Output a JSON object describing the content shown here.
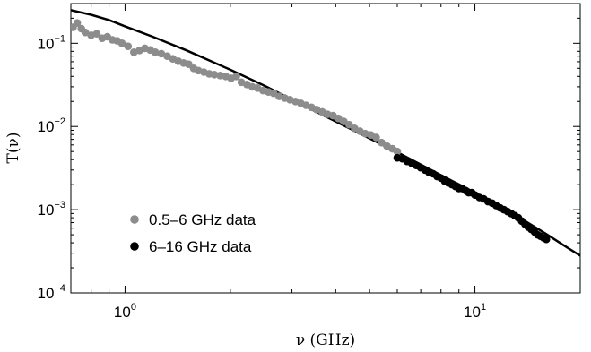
{
  "chart_data": {
    "type": "scatter",
    "xlabel": "ν (GHz)",
    "ylabel": "T(ν)",
    "xscale": "log",
    "yscale": "log",
    "xlim": [
      0.7,
      20
    ],
    "ylim": [
      0.0001,
      0.3
    ],
    "x_ticks": [
      {
        "value": 1,
        "base": "10",
        "exp": "0"
      },
      {
        "value": 10,
        "base": "10",
        "exp": "1"
      }
    ],
    "y_ticks": [
      {
        "value": 0.1,
        "base": "10",
        "exp": "−1"
      },
      {
        "value": 0.01,
        "base": "10",
        "exp": "−2"
      },
      {
        "value": 0.001,
        "base": "10",
        "exp": "−3"
      },
      {
        "value": 0.0001,
        "base": "10",
        "exp": "−4"
      }
    ],
    "legend": {
      "position": "lower-left"
    },
    "series": [
      {
        "name": "0.5–6 GHz data",
        "kind": "markers",
        "color": "#8c8c8c",
        "points": [
          [
            0.71,
            0.155
          ],
          [
            0.73,
            0.175
          ],
          [
            0.75,
            0.15
          ],
          [
            0.77,
            0.135
          ],
          [
            0.8,
            0.125
          ],
          [
            0.83,
            0.13
          ],
          [
            0.86,
            0.115
          ],
          [
            0.89,
            0.12
          ],
          [
            0.92,
            0.11
          ],
          [
            0.95,
            0.107
          ],
          [
            0.98,
            0.1
          ],
          [
            1.02,
            0.092
          ],
          [
            1.06,
            0.078
          ],
          [
            1.1,
            0.082
          ],
          [
            1.14,
            0.087
          ],
          [
            1.18,
            0.083
          ],
          [
            1.22,
            0.078
          ],
          [
            1.27,
            0.075
          ],
          [
            1.32,
            0.07
          ],
          [
            1.37,
            0.065
          ],
          [
            1.42,
            0.061
          ],
          [
            1.47,
            0.058
          ],
          [
            1.52,
            0.056
          ],
          [
            1.57,
            0.05
          ],
          [
            1.62,
            0.047
          ],
          [
            1.68,
            0.045
          ],
          [
            1.74,
            0.043
          ],
          [
            1.8,
            0.042
          ],
          [
            1.87,
            0.041
          ],
          [
            1.94,
            0.04
          ],
          [
            2.01,
            0.038
          ],
          [
            2.08,
            0.04
          ],
          [
            2.15,
            0.034
          ],
          [
            2.23,
            0.032
          ],
          [
            2.31,
            0.03
          ],
          [
            2.39,
            0.029
          ],
          [
            2.48,
            0.027
          ],
          [
            2.57,
            0.026
          ],
          [
            2.66,
            0.025
          ],
          [
            2.76,
            0.023
          ],
          [
            2.86,
            0.022
          ],
          [
            2.96,
            0.021
          ],
          [
            3.07,
            0.02
          ],
          [
            3.18,
            0.019
          ],
          [
            3.29,
            0.018
          ],
          [
            3.41,
            0.017
          ],
          [
            3.53,
            0.016
          ],
          [
            3.66,
            0.015
          ],
          [
            3.79,
            0.014
          ],
          [
            3.93,
            0.0135
          ],
          [
            4.07,
            0.0125
          ],
          [
            4.22,
            0.0115
          ],
          [
            4.37,
            0.0105
          ],
          [
            4.53,
            0.0095
          ],
          [
            4.69,
            0.0088
          ],
          [
            4.86,
            0.0082
          ],
          [
            5.04,
            0.0079
          ],
          [
            5.22,
            0.0074
          ],
          [
            5.41,
            0.0064
          ],
          [
            5.61,
            0.0058
          ],
          [
            5.81,
            0.0054
          ],
          [
            6.0,
            0.005
          ]
        ]
      },
      {
        "name": "6–16 GHz data",
        "kind": "markers",
        "color": "#000000",
        "points": [
          [
            6.0,
            0.0042
          ],
          [
            6.2,
            0.0041
          ],
          [
            6.4,
            0.0038
          ],
          [
            6.6,
            0.0036
          ],
          [
            6.8,
            0.0034
          ],
          [
            7.0,
            0.0032
          ],
          [
            7.2,
            0.003
          ],
          [
            7.4,
            0.0028
          ],
          [
            7.6,
            0.0027
          ],
          [
            7.8,
            0.0025
          ],
          [
            8.0,
            0.0024
          ],
          [
            8.2,
            0.0022
          ],
          [
            8.4,
            0.0021
          ],
          [
            8.6,
            0.002
          ],
          [
            8.8,
            0.0019
          ],
          [
            9.0,
            0.0018
          ],
          [
            9.2,
            0.0018
          ],
          [
            9.4,
            0.0017
          ],
          [
            9.6,
            0.0016
          ],
          [
            9.8,
            0.0016
          ],
          [
            10.0,
            0.0015
          ],
          [
            10.3,
            0.0014
          ],
          [
            10.6,
            0.00135
          ],
          [
            10.9,
            0.00125
          ],
          [
            11.2,
            0.0012
          ],
          [
            11.5,
            0.00112
          ],
          [
            11.8,
            0.00105
          ],
          [
            12.1,
            0.001
          ],
          [
            12.4,
            0.00095
          ],
          [
            12.7,
            0.0009
          ],
          [
            13.0,
            0.00085
          ],
          [
            13.3,
            0.0008
          ],
          [
            13.6,
            0.00073
          ],
          [
            13.9,
            0.00067
          ],
          [
            14.2,
            0.00062
          ],
          [
            14.5,
            0.00058
          ],
          [
            14.8,
            0.00054
          ],
          [
            15.1,
            0.0005
          ],
          [
            15.4,
            0.00048
          ],
          [
            15.7,
            0.00046
          ],
          [
            16.0,
            0.00044
          ]
        ]
      },
      {
        "name": "",
        "kind": "line",
        "color": "#000000",
        "points": [
          [
            0.7,
            0.25
          ],
          [
            0.8,
            0.22
          ],
          [
            0.9,
            0.19
          ],
          [
            1.0,
            0.16
          ],
          [
            1.2,
            0.12
          ],
          [
            1.5,
            0.082
          ],
          [
            2.0,
            0.048
          ],
          [
            2.5,
            0.031
          ],
          [
            3.0,
            0.021
          ],
          [
            4.0,
            0.0115
          ],
          [
            5.0,
            0.0072
          ],
          [
            6.0,
            0.0049
          ],
          [
            8.0,
            0.0026
          ],
          [
            10.0,
            0.0016
          ],
          [
            12.0,
            0.00105
          ],
          [
            14.0,
            0.00072
          ],
          [
            16.0,
            0.00051
          ],
          [
            18.0,
            0.00037
          ],
          [
            20.0,
            0.00028
          ]
        ]
      }
    ]
  }
}
